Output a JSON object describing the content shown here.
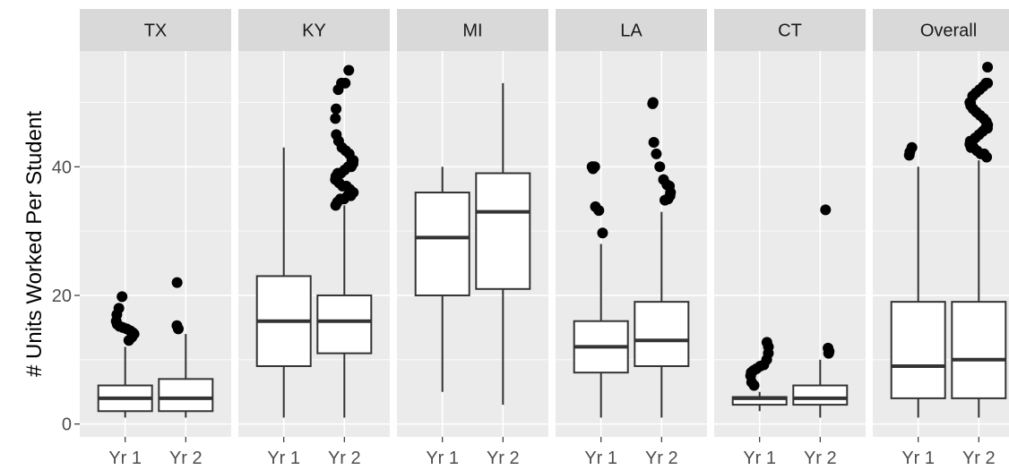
{
  "chart_data": {
    "type": "box",
    "ylabel": "# Units Worked Per Student",
    "xlabel": "",
    "ylim": [
      -2,
      58
    ],
    "y_ticks": [
      0,
      20,
      40
    ],
    "grid": true,
    "colors": {
      "panel_bg": "#ebebeb",
      "strip_bg": "#d9d9d9",
      "grid": "#ffffff",
      "box_fill": "#ffffff",
      "box_line": "#333333",
      "point": "#000000"
    },
    "categories": [
      "Yr 1",
      "Yr 2"
    ],
    "panels": [
      {
        "label": "TX",
        "boxes": [
          {
            "category": "Yr 1",
            "lower_whisker": 1,
            "q1": 2,
            "median": 4,
            "q3": 6,
            "upper_whisker": 12,
            "outliers": [
              13,
              13.5,
              14,
              14,
              14.2,
              14.5,
              14.8,
              15,
              15.2,
              15.5,
              16,
              17,
              18,
              19.8
            ]
          },
          {
            "category": "Yr 2",
            "lower_whisker": 1,
            "q1": 2,
            "median": 4,
            "q3": 7,
            "upper_whisker": 14,
            "outliers": [
              14.8,
              15.3,
              22
            ]
          }
        ]
      },
      {
        "label": "KY",
        "boxes": [
          {
            "category": "Yr 1",
            "lower_whisker": 1,
            "q1": 9,
            "median": 16,
            "q3": 23,
            "upper_whisker": 43,
            "outliers": []
          },
          {
            "category": "Yr 2",
            "lower_whisker": 1,
            "q1": 11,
            "median": 16,
            "q3": 20,
            "upper_whisker": 34,
            "outliers": [
              34,
              34.5,
              35,
              35,
              35.5,
              35.5,
              36,
              36,
              36,
              36.5,
              37,
              37,
              37.5,
              38,
              38,
              38.5,
              39,
              39,
              39.5,
              40,
              40,
              40.5,
              41,
              41,
              42,
              42.5,
              43,
              44,
              45,
              47.5,
              49,
              52,
              53,
              53,
              55
            ]
          }
        ]
      },
      {
        "label": "MI",
        "boxes": [
          {
            "category": "Yr 1",
            "lower_whisker": 5,
            "q1": 20,
            "median": 29,
            "q3": 36,
            "upper_whisker": 40,
            "outliers": []
          },
          {
            "category": "Yr 2",
            "lower_whisker": 3,
            "q1": 21,
            "median": 33,
            "q3": 39,
            "upper_whisker": 53,
            "outliers": []
          }
        ]
      },
      {
        "label": "LA",
        "boxes": [
          {
            "category": "Yr 1",
            "lower_whisker": 1,
            "q1": 8,
            "median": 12,
            "q3": 16,
            "upper_whisker": 28,
            "outliers": [
              29.7,
              33.2,
              33.8,
              39.7,
              40,
              40,
              40
            ]
          },
          {
            "category": "Yr 2",
            "lower_whisker": 1,
            "q1": 9,
            "median": 13,
            "q3": 19,
            "upper_whisker": 33,
            "outliers": [
              34.8,
              35,
              35.5,
              36,
              37,
              37.2,
              38,
              40,
              42,
              43.8,
              49.8,
              50
            ]
          }
        ]
      },
      {
        "label": "CT",
        "boxes": [
          {
            "category": "Yr 1",
            "lower_whisker": 2,
            "q1": 3,
            "median": 4,
            "q3": 4.2,
            "upper_whisker": 5,
            "outliers": [
              6,
              6.5,
              7.5,
              8,
              8.3,
              8.6,
              9,
              9.2,
              10,
              11,
              12,
              12.7
            ]
          },
          {
            "category": "Yr 2",
            "lower_whisker": 1,
            "q1": 3,
            "median": 4,
            "q3": 6,
            "upper_whisker": 10,
            "outliers": [
              11,
              11.3,
              11.8,
              33.3
            ]
          }
        ]
      },
      {
        "label": "Overall",
        "boxes": [
          {
            "category": "Yr 1",
            "lower_whisker": 1,
            "q1": 4,
            "median": 9,
            "q3": 19,
            "upper_whisker": 40,
            "outliers": [
              41.8,
              42.3,
              43
            ]
          },
          {
            "category": "Yr 2",
            "lower_whisker": 1,
            "q1": 4,
            "median": 10,
            "q3": 19,
            "upper_whisker": 41,
            "outliers": [
              41.5,
              42,
              42,
              42.5,
              43,
              43,
              43.5,
              44,
              44,
              44.5,
              45,
              45.5,
              46,
              46,
              46.5,
              47,
              47.5,
              48,
              48.5,
              49,
              49.5,
              50,
              50,
              51,
              51.5,
              52,
              52.5,
              53,
              53,
              55.5
            ]
          }
        ]
      }
    ]
  }
}
